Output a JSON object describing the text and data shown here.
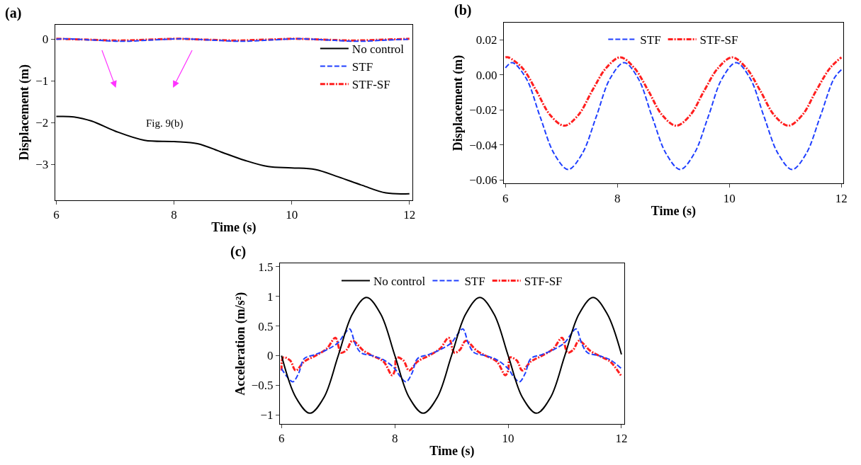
{
  "chart_data": [
    {
      "type": "line",
      "title": "(a)",
      "xlabel": "Time (s)",
      "ylabel": "Displacement (m)",
      "xlim": [
        5.98,
        12.05
      ],
      "ylim": [
        -3.85,
        0.35
      ],
      "xticks": [
        6,
        8,
        10,
        12
      ],
      "yticks": [
        0,
        -1,
        -2,
        -3
      ],
      "legend": "right",
      "annotations": [
        "Fig. 9(b)"
      ],
      "series": [
        {
          "name": "No control",
          "color": "#000000",
          "line_style": "solid",
          "x": [
            6.0,
            6.3,
            6.6,
            7.0,
            7.5,
            8.0,
            8.4,
            8.8,
            9.2,
            9.6,
            10.0,
            10.4,
            10.8,
            11.2,
            11.6,
            12.0
          ],
          "values": [
            -1.85,
            -1.86,
            -1.96,
            -2.2,
            -2.42,
            -2.45,
            -2.5,
            -2.7,
            -2.9,
            -3.05,
            -3.08,
            -3.12,
            -3.3,
            -3.5,
            -3.68,
            -3.7
          ]
        },
        {
          "name": "STF",
          "color": "#1f3fff",
          "line_style": "dashed",
          "x": [
            6.0,
            6.12,
            6.62,
            7.12,
            7.62,
            8.12,
            8.62,
            9.12,
            9.62,
            10.12,
            10.62,
            11.12,
            11.62,
            12.0
          ],
          "values": [
            0.0,
            0.01,
            -0.02,
            -0.05,
            -0.02,
            0.01,
            -0.02,
            -0.05,
            -0.02,
            0.01,
            -0.02,
            -0.05,
            -0.02,
            0.0
          ]
        },
        {
          "name": "STF-SF",
          "color": "#ff1f1f",
          "line_style": "dashdot",
          "x": [
            6.0,
            6.55,
            7.05,
            7.55,
            8.05,
            8.55,
            9.05,
            9.55,
            10.05,
            10.55,
            11.05,
            11.55,
            12.0
          ],
          "values": [
            0.01,
            -0.01,
            -0.03,
            -0.01,
            0.01,
            -0.01,
            -0.03,
            -0.01,
            0.01,
            -0.01,
            -0.03,
            -0.01,
            0.01
          ]
        }
      ]
    },
    {
      "type": "line",
      "title": "(b)",
      "xlabel": "Time (s)",
      "ylabel": "Displacement (m)",
      "xlim": [
        5.97,
        12.03
      ],
      "ylim": [
        -0.062,
        0.03
      ],
      "xticks": [
        6,
        8,
        10,
        12
      ],
      "yticks": [
        0.02,
        {
          "value": 0,
          "label": "0.00"
        },
        -0.02,
        -0.04,
        -0.06
      ],
      "legend": "top",
      "series": [
        {
          "name": "STF",
          "color": "#1f3fff",
          "line_style": "dashed",
          "x": [
            6.0,
            6.12,
            6.37,
            6.62,
            6.87,
            7.12,
            7.37,
            7.62,
            7.87,
            8.12,
            8.37,
            8.62,
            8.87,
            9.12,
            9.37,
            9.62,
            9.87,
            10.12,
            10.37,
            10.62,
            10.87,
            11.12,
            11.37,
            11.62,
            11.87,
            12.0
          ],
          "values": [
            0.004,
            0.007,
            -0.002,
            -0.024,
            -0.045,
            -0.054,
            -0.045,
            -0.024,
            -0.002,
            0.007,
            -0.002,
            -0.024,
            -0.045,
            -0.054,
            -0.045,
            -0.024,
            -0.002,
            0.007,
            -0.002,
            -0.024,
            -0.045,
            -0.054,
            -0.045,
            -0.024,
            -0.002,
            0.003
          ]
        },
        {
          "name": "STF-SF",
          "color": "#ff1f1f",
          "line_style": "dashdot",
          "x": [
            6.0,
            6.05,
            6.3,
            6.55,
            6.8,
            7.05,
            7.3,
            7.55,
            7.8,
            8.05,
            8.3,
            8.55,
            8.8,
            9.05,
            9.3,
            9.55,
            9.8,
            10.05,
            10.3,
            10.55,
            10.8,
            11.05,
            11.3,
            11.55,
            11.8,
            12.0
          ],
          "values": [
            0.01,
            0.01,
            0.004,
            -0.009,
            -0.023,
            -0.029,
            -0.023,
            -0.009,
            0.004,
            0.01,
            0.004,
            -0.009,
            -0.023,
            -0.029,
            -0.023,
            -0.009,
            0.004,
            0.01,
            0.004,
            -0.009,
            -0.023,
            -0.029,
            -0.023,
            -0.009,
            0.004,
            0.01
          ]
        }
      ]
    },
    {
      "type": "line",
      "title": "(c)",
      "xlabel": "Time (s)",
      "ylabel": "Acceleration (m/s²)",
      "xlim": [
        5.97,
        12.05
      ],
      "ylim": [
        -1.15,
        1.55
      ],
      "xticks": [
        6,
        8,
        10,
        12
      ],
      "yticks": [
        1.5,
        1,
        0.5,
        0,
        -0.5,
        -1
      ],
      "legend": "top",
      "series": [
        {
          "name": "No control",
          "color": "#000000",
          "line_style": "solid",
          "x": [
            6.0,
            6.25,
            6.5,
            6.75,
            7.0,
            7.25,
            7.5,
            7.75,
            8.0,
            8.25,
            8.5,
            8.75,
            9.0,
            9.25,
            9.5,
            9.75,
            10.0,
            10.25,
            10.5,
            10.75,
            11.0,
            11.25,
            11.5,
            11.75,
            12.0
          ],
          "values": [
            0,
            -0.7,
            -0.97,
            -0.7,
            0,
            0.7,
            0.98,
            0.7,
            0,
            -0.7,
            -0.97,
            -0.7,
            0,
            0.7,
            0.98,
            0.7,
            0,
            -0.7,
            -0.97,
            -0.7,
            0,
            0.7,
            0.98,
            0.7,
            0.02
          ]
        },
        {
          "name": "STF",
          "color": "#1f3fff",
          "line_style": "dashed",
          "x": [
            6.0,
            6.1,
            6.2,
            6.3,
            6.4,
            6.6,
            6.8,
            7.0,
            7.1,
            7.2,
            7.3,
            7.4,
            7.6,
            7.8,
            8.0,
            8.1,
            8.2,
            8.3,
            8.4,
            8.6,
            8.8,
            9.0,
            9.1,
            9.2,
            9.3,
            9.4,
            9.6,
            9.8,
            10.0,
            10.1,
            10.2,
            10.3,
            10.4,
            10.6,
            10.8,
            11.0,
            11.1,
            11.2,
            11.3,
            11.4,
            11.6,
            11.8,
            12.0
          ],
          "values": [
            -0.22,
            -0.36,
            -0.44,
            -0.3,
            -0.05,
            0.02,
            0.1,
            0.22,
            0.35,
            0.45,
            0.2,
            0.05,
            0.0,
            -0.07,
            -0.22,
            -0.36,
            -0.44,
            -0.3,
            -0.05,
            0.02,
            0.1,
            0.22,
            0.35,
            0.45,
            0.2,
            0.05,
            0.0,
            -0.07,
            -0.22,
            -0.36,
            -0.44,
            -0.3,
            -0.05,
            0.02,
            0.1,
            0.22,
            0.35,
            0.45,
            0.2,
            0.05,
            0.0,
            -0.07,
            -0.22
          ]
        },
        {
          "name": "STF-SF",
          "color": "#ff1f1f",
          "line_style": "dashdot",
          "x": [
            6.0,
            6.03,
            6.15,
            6.25,
            6.4,
            6.6,
            6.8,
            6.95,
            7.05,
            7.15,
            7.25,
            7.45,
            7.6,
            7.8,
            7.95,
            8.0,
            8.03,
            8.15,
            8.25,
            8.4,
            8.6,
            8.8,
            8.95,
            9.05,
            9.15,
            9.25,
            9.45,
            9.6,
            9.8,
            9.95,
            10.0,
            10.03,
            10.15,
            10.25,
            10.4,
            10.6,
            10.8,
            10.95,
            11.05,
            11.15,
            11.25,
            11.45,
            11.6,
            11.8,
            12.0
          ],
          "values": [
            -0.25,
            -0.03,
            -0.08,
            -0.25,
            -0.1,
            0.0,
            0.12,
            0.3,
            0.05,
            0.1,
            0.25,
            0.08,
            0.0,
            -0.1,
            -0.33,
            -0.25,
            -0.03,
            -0.08,
            -0.25,
            -0.1,
            0.0,
            0.12,
            0.3,
            0.05,
            0.1,
            0.25,
            0.08,
            0.0,
            -0.1,
            -0.33,
            -0.25,
            -0.03,
            -0.08,
            -0.25,
            -0.1,
            0.0,
            0.12,
            0.3,
            0.05,
            0.1,
            0.25,
            0.08,
            0.0,
            -0.1,
            -0.35
          ]
        }
      ]
    }
  ]
}
